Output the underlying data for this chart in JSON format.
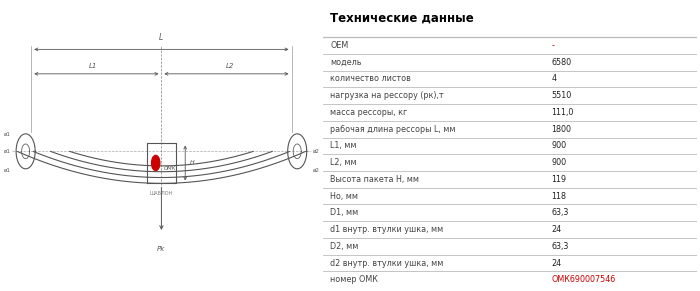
{
  "title": "Технические данные",
  "table_rows": [
    [
      "OEM",
      "-"
    ],
    [
      "модель",
      "6580"
    ],
    [
      "количество листов",
      "4"
    ],
    [
      "нагрузка на рессору (рк),т",
      "5510"
    ],
    [
      "масса рессоры, кг",
      "111,0"
    ],
    [
      "рабочая длина рессоры L, мм",
      "1800"
    ],
    [
      "L1, мм",
      "900"
    ],
    [
      "L2, мм",
      "900"
    ],
    [
      "Высота пакета Н, мм",
      "119"
    ],
    [
      "Но, мм",
      "118"
    ],
    [
      "D1, мм",
      "63,3"
    ],
    [
      "d1 внутр. втулки ушка, мм",
      "24"
    ],
    [
      "D2, мм",
      "63,3"
    ],
    [
      "d2 внутр. втулки ушка, мм",
      "24"
    ],
    [
      "номер ОМК",
      "ОМК690007546"
    ]
  ],
  "oem_value_color": "#cc0000",
  "last_row_value_color": "#cc0000",
  "divider_color": "#bbbbbb",
  "title_color": "#000000",
  "background_color": "#ffffff",
  "label_color": "#444444",
  "value_color": "#222222",
  "diagram_color": "#555555"
}
